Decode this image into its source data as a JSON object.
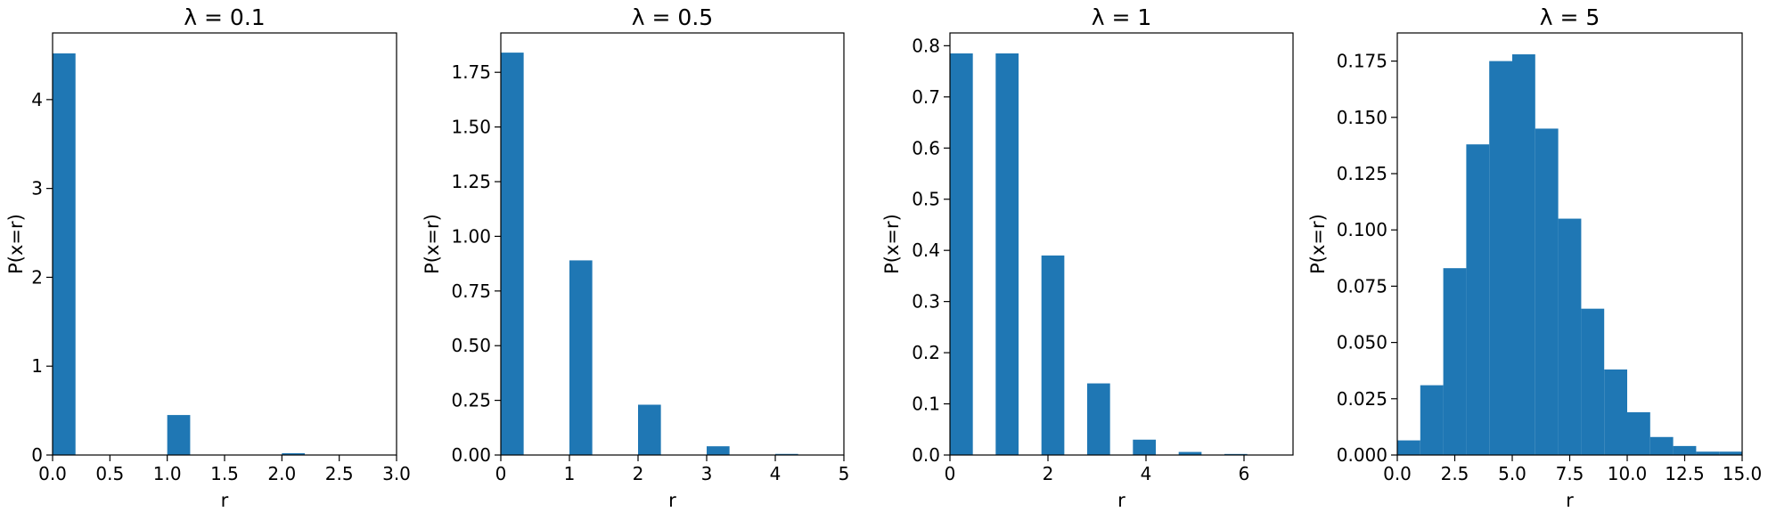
{
  "chart_data": [
    {
      "type": "bar",
      "title": "λ = 0.1",
      "xlabel": "r",
      "ylabel": "P(x=r)",
      "xlim": [
        0,
        3.0
      ],
      "ylim": [
        0,
        4.75
      ],
      "xticks": [
        0,
        0.5,
        1.0,
        1.5,
        2.0,
        2.5,
        3.0
      ],
      "xtick_labels": [
        "0.0",
        "0.5",
        "1.0",
        "1.5",
        "2.0",
        "2.5",
        "3.0"
      ],
      "yticks": [
        0,
        1,
        2,
        3,
        4
      ],
      "ytick_labels": [
        "0",
        "1",
        "2",
        "3",
        "4"
      ],
      "bin_width": 0.2,
      "bin_left_edges": [
        0,
        1.0,
        2.0
      ],
      "values": [
        4.52,
        0.45,
        0.02
      ],
      "color": "#1f77b4"
    },
    {
      "type": "bar",
      "title": "λ = 0.5",
      "xlabel": "r",
      "ylabel": "P(x=r)",
      "xlim": [
        0,
        5
      ],
      "ylim": [
        0,
        1.93
      ],
      "xticks": [
        0,
        1,
        2,
        3,
        4,
        5
      ],
      "xtick_labels": [
        "0",
        "1",
        "2",
        "3",
        "4",
        "5"
      ],
      "yticks": [
        0,
        0.25,
        0.5,
        0.75,
        1.0,
        1.25,
        1.5,
        1.75
      ],
      "ytick_labels": [
        "0.00",
        "0.25",
        "0.50",
        "0.75",
        "1.00",
        "1.25",
        "1.50",
        "1.75"
      ],
      "bin_width": 0.333,
      "bin_left_edges": [
        0,
        1.0,
        2.0,
        3.0,
        4.0
      ],
      "values": [
        1.84,
        0.89,
        0.23,
        0.04,
        0.005
      ],
      "color": "#1f77b4"
    },
    {
      "type": "bar",
      "title": "λ = 1",
      "xlabel": "r",
      "ylabel": "P(x=r)",
      "xlim": [
        0,
        7
      ],
      "ylim": [
        0,
        0.825
      ],
      "xticks": [
        0,
        2,
        4,
        6
      ],
      "xtick_labels": [
        "0",
        "2",
        "4",
        "6"
      ],
      "yticks": [
        0,
        0.1,
        0.2,
        0.3,
        0.4,
        0.5,
        0.6,
        0.7,
        0.8
      ],
      "ytick_labels": [
        "0.0",
        "0.1",
        "0.2",
        "0.3",
        "0.4",
        "0.5",
        "0.6",
        "0.7",
        "0.8"
      ],
      "bin_width": 0.467,
      "bin_left_edges": [
        0,
        0.933,
        1.867,
        2.8,
        3.733,
        4.667,
        5.6
      ],
      "values": [
        0.785,
        0.785,
        0.39,
        0.14,
        0.03,
        0.006,
        0.002
      ],
      "color": "#1f77b4"
    },
    {
      "type": "bar",
      "title": "λ = 5",
      "xlabel": "r",
      "ylabel": "P(x=r)",
      "xlim": [
        0,
        15.0
      ],
      "ylim": [
        0,
        0.1875
      ],
      "xticks": [
        0,
        2.5,
        5.0,
        7.5,
        10.0,
        12.5,
        15.0
      ],
      "xtick_labels": [
        "0.0",
        "2.5",
        "5.0",
        "7.5",
        "10.0",
        "12.5",
        "15.0"
      ],
      "yticks": [
        0,
        0.025,
        0.05,
        0.075,
        0.1,
        0.125,
        0.15,
        0.175
      ],
      "ytick_labels": [
        "0.000",
        "0.025",
        "0.050",
        "0.075",
        "0.100",
        "0.125",
        "0.150",
        "0.175"
      ],
      "bin_width": 1.0,
      "bin_left_edges": [
        0,
        1,
        2,
        3,
        4,
        5,
        6,
        7,
        8,
        9,
        10,
        11,
        12,
        13,
        14
      ],
      "values": [
        0.0065,
        0.031,
        0.083,
        0.138,
        0.175,
        0.178,
        0.145,
        0.105,
        0.065,
        0.038,
        0.019,
        0.008,
        0.004,
        0.0015,
        0.0015
      ],
      "color": "#1f77b4"
    }
  ]
}
